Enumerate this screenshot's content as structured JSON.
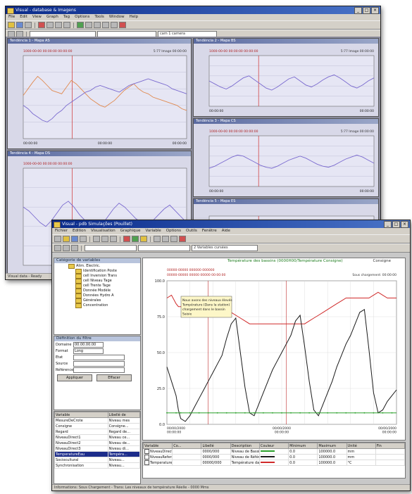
{
  "back_window": {
    "title": "Visual - database & Imagens",
    "menu": [
      "File",
      "Edit",
      "View",
      "Graph",
      "Tag",
      "Options",
      "Tools",
      "Window",
      "Help"
    ],
    "combo_1": "",
    "combo_2": "",
    "combo_3": "cam 1 camera",
    "charts": [
      {
        "title": "Tendência 1 - Mapa AS",
        "header_left": "1000-00-00 00:00:00  00:00:00",
        "header_right": "5:77 Image 00:00:00",
        "x_start": "00:00:00",
        "x_mid": "00:00:00",
        "x_end": "00:00:00",
        "colors": [
          "#e08a50",
          "#7a6acf"
        ],
        "series": [
          [
            52,
            60,
            68,
            75,
            70,
            64,
            58,
            56,
            54,
            62,
            70,
            66,
            60,
            54,
            48,
            44,
            40,
            38,
            42,
            46,
            52,
            58,
            62,
            66,
            60,
            56,
            54,
            50,
            48,
            46,
            44,
            42,
            40,
            36,
            34
          ],
          [
            40,
            36,
            30,
            26,
            22,
            20,
            24,
            30,
            34,
            40,
            44,
            48,
            52,
            56,
            58,
            62,
            64,
            62,
            60,
            58,
            56,
            60,
            64,
            66,
            68,
            70,
            72,
            70,
            68,
            66,
            64,
            60,
            58,
            56,
            54
          ]
        ]
      },
      {
        "title": "Tendência 2 - Mapa BS",
        "header_left": "1000-00-00 00:00:00  00:00:00",
        "header_right": "5:77 Image 00:00:00",
        "x_start": "00:00:00",
        "x_mid": "",
        "x_end": "00:00:00",
        "colors": [
          "#7a6acf"
        ],
        "series": [
          [
            50,
            44,
            38,
            34,
            40,
            48,
            56,
            60,
            52,
            44,
            36,
            32,
            38,
            46,
            54,
            58,
            50,
            42,
            38,
            44,
            52,
            58,
            62,
            56,
            48,
            40,
            36,
            42,
            50,
            56
          ]
        ]
      },
      {
        "title": "Tendência 3 - Mapa CS",
        "header_left": "1000-00-00 00:00:00  00:00:00",
        "header_right": "5:77 Image 00:00:00",
        "x_start": "00:00:00",
        "x_mid": "",
        "x_end": "00:00:00",
        "colors": [
          "#7a6acf"
        ],
        "series": [
          [
            36,
            40,
            46,
            52,
            58,
            62,
            60,
            54,
            48,
            42,
            38,
            36,
            40,
            46,
            52,
            56,
            60,
            56,
            50,
            44,
            40,
            38,
            42,
            48,
            54,
            58,
            62,
            58,
            52,
            46
          ]
        ]
      },
      {
        "title": "Tendência 4 - Mapa DS",
        "header_left": "1000-00-00 00:00:00  00:00:00",
        "header_right": "",
        "x_start": "",
        "x_mid": "",
        "x_end": "",
        "colors": [
          "#7a6acf"
        ],
        "series": [
          [
            60,
            56,
            50,
            44,
            40,
            46,
            54,
            62,
            66,
            60,
            52,
            46,
            40,
            36,
            42,
            50,
            58,
            64,
            60,
            54,
            48,
            44,
            40,
            46,
            52,
            58,
            62,
            56,
            50,
            44
          ]
        ]
      },
      {
        "title": "Tendência 5 - Mapa ES",
        "header_left": "",
        "header_right": "",
        "x_start": "",
        "x_mid": "",
        "x_end": "",
        "colors": [
          "#7a6acf"
        ],
        "series": [
          [
            44,
            48,
            52,
            50,
            46,
            42,
            40,
            44
          ]
        ]
      }
    ],
    "status": "Visual data - Ready"
  },
  "front_window": {
    "title": "Visual - pdb Simulações (Pouillet)",
    "menu": [
      "Fichier",
      "Edition",
      "Visualisation",
      "Graphique",
      "Variable",
      "Options",
      "Outils",
      "Fenêtre",
      "Aide"
    ],
    "combo_1": "",
    "combo_2": "",
    "combo_3": "2 Variables cursées",
    "tree_header": "Catégorie de variables",
    "tree_items": [
      {
        "label": "Alim. Electric.",
        "level": 2
      },
      {
        "label": "Identification Poste",
        "level": 3
      },
      {
        "label": "cell Inversion Trans",
        "level": 3
      },
      {
        "label": "cell Niveau Tage",
        "level": 3
      },
      {
        "label": "cell Trente Tage",
        "level": 3
      },
      {
        "label": "Donnée Modèle",
        "level": 3
      },
      {
        "label": "Données Hydro A",
        "level": 3
      },
      {
        "label": "Générales",
        "level": 3
      },
      {
        "label": "Concentration",
        "level": 3
      }
    ],
    "filter_header": "Définition du filtre",
    "filter_fields": [
      {
        "label": "Domaine",
        "value": "00.00.00.00"
      },
      {
        "label": "Format",
        "value": "Long"
      },
      {
        "label": "Etat",
        "value": ""
      },
      {
        "label": "Source",
        "value": ""
      },
      {
        "label": "Référence",
        "value": ""
      }
    ],
    "filter_buttons": [
      "Appliquer",
      "Effacer"
    ],
    "var_columns": [
      "Variable",
      "Libellé de"
    ],
    "variables": [
      {
        "name": "MesureDeCrote",
        "desc": "Niveau mes"
      },
      {
        "name": "Consigne",
        "desc": "Consigne..."
      },
      {
        "name": "Regard",
        "desc": "Regard de..."
      },
      {
        "name": "NiveauDirect1",
        "desc": "Niveau ce..."
      },
      {
        "name": "NiveauDirect2",
        "desc": "Niveau de..."
      },
      {
        "name": "NiveauDirect3",
        "desc": "Niveau di..."
      },
      {
        "name": "TemperatureEau",
        "desc": "Tempéra...",
        "selected": true
      },
      {
        "name": "Sociocultural",
        "desc": "Niveau..."
      },
      {
        "name": "Synchronisation",
        "desc": "Niveau..."
      }
    ],
    "chart": {
      "legend_title": "Température des bassins (0000H00/Température Consigne)",
      "legend_right": "Consigne",
      "header_left_1": "00000-00000 000000 000000",
      "header_left_2": "00000-00000 00000  00000 00:00:00",
      "header_right": "Sous chargement: 00:00:00",
      "tooltip": [
        "Nous avons des niveaux élevés",
        "Température (Dans la station)",
        "chargement dans le bassin",
        "Saisie"
      ],
      "x_labels": [
        "00/00/2000\n00:00:00",
        "00/00/2000\n00:00:00",
        "00/00/2000\n00:00:00"
      ]
    },
    "chart_data": {
      "type": "line",
      "title": "",
      "ylim": [
        0,
        100
      ],
      "yticks": [
        100,
        75,
        50,
        25,
        0
      ],
      "yticklabels": [
        "100.0",
        "75.0",
        "50.0",
        "25.0",
        "0.0"
      ],
      "grid": true,
      "x": [
        0,
        2,
        4,
        5,
        6,
        8,
        10,
        12,
        14,
        16,
        18,
        20,
        22,
        24,
        26,
        28,
        30,
        32,
        34,
        36,
        38,
        40,
        42,
        44,
        46,
        48,
        50,
        52,
        54,
        56,
        58,
        60,
        62,
        64,
        66,
        68,
        70,
        72,
        74,
        76,
        78,
        80,
        82,
        84,
        86,
        88,
        90,
        92,
        94,
        96,
        98,
        100
      ],
      "series": [
        {
          "name": "",
          "color": "#d02a2a",
          "values": [
            88,
            90,
            84,
            82,
            82,
            82,
            82,
            82,
            82,
            82,
            82,
            82,
            82,
            82,
            80,
            78,
            76,
            74,
            72,
            70,
            70,
            70,
            70,
            70,
            70,
            70,
            70,
            70,
            70,
            70,
            70,
            70,
            72,
            74,
            76,
            78,
            80,
            82,
            84,
            86,
            88,
            88,
            88,
            88,
            88,
            88,
            90,
            92,
            90,
            88,
            88,
            88
          ]
        },
        {
          "name": "",
          "color": "#1a1a1a",
          "values": [
            40,
            30,
            20,
            10,
            4,
            2,
            6,
            12,
            18,
            24,
            30,
            36,
            42,
            48,
            60,
            70,
            74,
            50,
            26,
            8,
            6,
            14,
            22,
            30,
            38,
            44,
            50,
            56,
            62,
            72,
            76,
            54,
            30,
            10,
            6,
            14,
            22,
            30,
            40,
            48,
            56,
            62,
            70,
            78,
            80,
            52,
            22,
            8,
            10,
            16,
            20,
            24
          ]
        },
        {
          "name": "",
          "color": "#2aa02a",
          "values": [
            8,
            8,
            8,
            8,
            8,
            8,
            8,
            8,
            8,
            8,
            8,
            8,
            8,
            8,
            8,
            8,
            8,
            8,
            8,
            8,
            8,
            8,
            8,
            8,
            8,
            8,
            8,
            8,
            8,
            8,
            8,
            8,
            8,
            8,
            8,
            8,
            8,
            8,
            8,
            8,
            8,
            8,
            8,
            8,
            8,
            8,
            8,
            8,
            8,
            8,
            8,
            8
          ]
        }
      ]
    },
    "table": {
      "columns": [
        "Variable",
        "Co...",
        "Libellé",
        "Description",
        "Couleur",
        "Minimum",
        "Maximum",
        "Unité",
        "Fin"
      ],
      "rows": [
        {
          "name": "NiveauDirect3",
          "libelle": "0000/000",
          "desc": "Niveau de Bassin Eau",
          "min": "0.0",
          "max": "100000.0",
          "unit": "mm",
          "color": "#2aa02a"
        },
        {
          "name": "NiveauReference",
          "libelle": "0000/000",
          "desc": "Niveau de Référence",
          "min": "0.0",
          "max": "100000.0",
          "unit": "mm",
          "color": "#1a1a1a"
        },
        {
          "name": "TemperatureEau",
          "libelle": "00000/000",
          "desc": "Température dans des bassins",
          "min": "0.0",
          "max": "100000.0",
          "unit": "°C",
          "color": "#d02a2a"
        }
      ]
    },
    "status": "Informations: Sous Chargement - Trans: Les niveaux de température Réelle - 0000 Mms"
  }
}
